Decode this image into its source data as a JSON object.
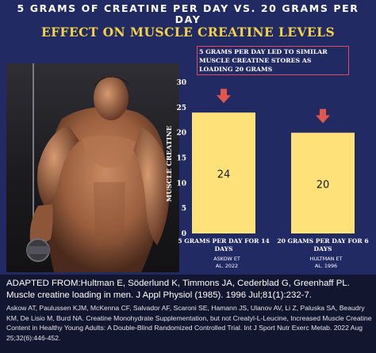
{
  "header": {
    "title_top": "5 GRAMS OF CREATINE PER DAY VS. 20 GRAMS PER DAY",
    "title_main": "EFFECT ON MUSCLE CREATINE LEVELS",
    "note": "5 grams per day led to similar muscle creatine stores as loading 20 grams"
  },
  "chart_data": {
    "type": "bar",
    "categories": [
      "5 GRAMS PER DAY FOR 14 DAYS",
      "20 GRAMS PER DAY FOR 6 DAYS"
    ],
    "values": [
      24,
      20
    ],
    "data_labels": [
      "24",
      "20"
    ],
    "sources": [
      "ASKOW ET AL. 2022",
      "HULTMAN ET AL. 1996"
    ],
    "ylabel": "MUSCLE CREATINE",
    "xlabel": "",
    "ylim": [
      0,
      30
    ],
    "yticks": [
      0,
      5,
      10,
      15,
      20,
      25,
      30
    ],
    "grid": false,
    "bar_color": "#ffe17a",
    "arrow_color": "#e2574c"
  },
  "footer": {
    "citation_main": "ADAPTED FROM:Hultman E, Söderlund K, Timmons JA, Cederblad G, Greenhaff PL. Muscle creatine loading in men. J Appl Physiol (1985). 1996 Jul;81(1):232-7.",
    "citation_extra": "Askow AT, Paulussen KJM, McKenna CF, Salvador AF, Scaroni SE, Hamann JS, Ulanov AV, Li Z, Paluska SA, Beaudry KM, De Lisio M, Burd NA. Creatine Monohydrate Supplementation, but not Creatyl-L-Leucine, Increased Muscle Creatine Content in Healthy Young Adults: A Double-Blind Randomized Controlled Trial. Int J Sport Nutr Exerc Metab. 2022 Aug 25;32(6):446-452."
  }
}
